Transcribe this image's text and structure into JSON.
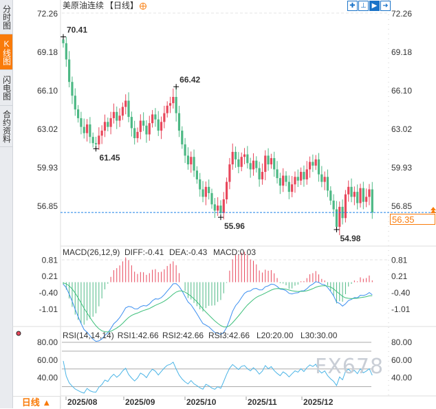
{
  "sidebar": {
    "tabs": [
      {
        "label": "分时图",
        "active": false
      },
      {
        "label": "K线图",
        "active": true
      },
      {
        "label": "闪电图",
        "active": false
      },
      {
        "label": "合约资料",
        "active": false
      }
    ]
  },
  "header": {
    "title": "美原油连续",
    "period": "【日线】",
    "zoom_icon": "circle-plus-icon"
  },
  "toolbar": {
    "icons": [
      "crosshair-icon",
      "axis-cursor-icon",
      "axis-play-icon",
      "exit-arrow-icon"
    ]
  },
  "price_axis": {
    "ticks": [
      "72.26",
      "69.18",
      "66.10",
      "63.02",
      "59.93",
      "56.85"
    ]
  },
  "last_price": "56.35",
  "annotations": {
    "high1": "70.41",
    "low1": "61.45",
    "high2": "66.42",
    "low2": "55.96",
    "low3": "54.98"
  },
  "macd": {
    "label": "MACD(26,12,9)",
    "diff": "DIFF:-0.41",
    "dea": "DEA:-0.43",
    "macd": "MACD:0.03",
    "ticks": [
      "0.81",
      "0.21",
      "-0.40",
      "-1.01"
    ]
  },
  "rsi": {
    "label": "RSI(14,14,14)",
    "rsi1": "RSI1:42.66",
    "rsi2": "RSI2:42.66",
    "rsi3": "RSI3:42.66",
    "l20": "L20:20.00",
    "l30": "L30:30.00",
    "ticks": [
      "80.00",
      "60.00",
      "40.00"
    ]
  },
  "dates": [
    "2025/08",
    "2025/09",
    "2025/10",
    "2025/11",
    "2025/12"
  ],
  "bottom_tab": "日线 ▲",
  "watermark": "FX678",
  "colors": {
    "up": "#e8475b",
    "down": "#4cb884",
    "accent": "#f97b0a",
    "diff": "#3a8ef0",
    "dea": "#3cbf7a",
    "rsi": "#4ab4e6"
  },
  "chart_data": {
    "type": "candlestick",
    "ylim": [
      54.5,
      72.26
    ],
    "closes": [
      69.9,
      68.6,
      66.8,
      65.7,
      64.6,
      63.9,
      63.2,
      62.7,
      63.4,
      62.4,
      61.9,
      61.8,
      62.5,
      62.9,
      63.6,
      63.2,
      63.9,
      64.4,
      63.7,
      64.1,
      64.8,
      65.3,
      64.0,
      63.1,
      62.3,
      62.8,
      63.7,
      63.3,
      62.6,
      63.5,
      64.2,
      63.8,
      62.9,
      63.6,
      64.3,
      64.9,
      65.1,
      65.6,
      64.3,
      62.9,
      61.8,
      60.9,
      60.2,
      60.8,
      59.7,
      59.0,
      58.2,
      57.6,
      58.4,
      57.9,
      57.0,
      56.5,
      56.9,
      56.3,
      57.4,
      58.8,
      60.2,
      61.2,
      60.6,
      60.0,
      60.8,
      61.0,
      60.3,
      59.8,
      60.5,
      59.9,
      59.0,
      59.6,
      60.9,
      60.2,
      60.7,
      59.8,
      59.1,
      58.5,
      59.3,
      58.8,
      58.0,
      58.6,
      59.2,
      58.9,
      59.6,
      59.0,
      59.8,
      60.4,
      60.1,
      60.6,
      59.4,
      58.8,
      59.2,
      58.1,
      57.3,
      56.6,
      55.2,
      56.8,
      55.9,
      57.8,
      58.4,
      57.6,
      58.0,
      57.1,
      58.3,
      57.2,
      57.6,
      58.2,
      56.35
    ],
    "marked": [
      {
        "index": 0,
        "type": "high",
        "value": 70.41
      },
      {
        "index": 11,
        "type": "low",
        "value": 61.45
      },
      {
        "index": 38,
        "type": "high",
        "value": 66.42
      },
      {
        "index": 53,
        "type": "low",
        "value": 55.96
      },
      {
        "index": 92,
        "type": "low",
        "value": 54.98
      }
    ]
  }
}
